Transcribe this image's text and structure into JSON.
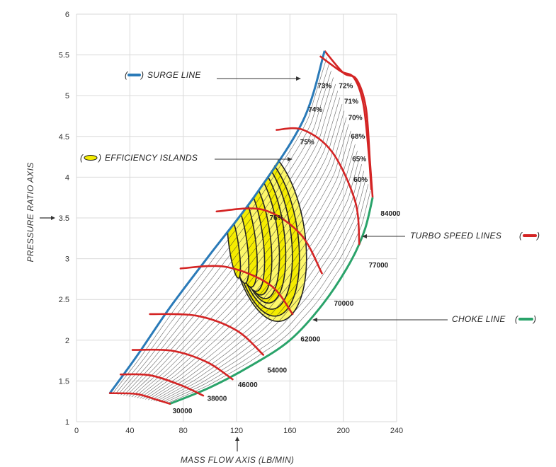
{
  "colors": {
    "surge": "#2a7ab8",
    "choke": "#2aa36a",
    "speed": "#d42424",
    "island_fill": "#fdf76a",
    "island_core": "#f5ec00",
    "island_edge": "#222222",
    "grid": "#d9d9d9"
  },
  "chart_data": {
    "type": "line",
    "title": "",
    "xlabel": "MASS FLOW AXIS (LB/MIN)",
    "ylabel": "PRESSURE RATIO AXIS",
    "xlim": [
      0,
      240
    ],
    "ylim": [
      1,
      6
    ],
    "xticks": [
      0,
      40,
      80,
      120,
      160,
      200,
      240
    ],
    "yticks": [
      1,
      1.5,
      2,
      2.5,
      3,
      3.5,
      4,
      4.5,
      5,
      5.5,
      6
    ],
    "xtick_labels": [
      "0",
      "40",
      "80",
      "120",
      "160",
      "200",
      "240"
    ],
    "ytick_labels": [
      "1",
      "1.5",
      "2",
      "2.5",
      "3",
      "3.5",
      "4",
      "4.5",
      "5",
      "5.5",
      "6"
    ],
    "grid": true,
    "surge_line": {
      "name": "SURGE LINE",
      "points": [
        [
          25,
          1.35
        ],
        [
          45,
          1.8
        ],
        [
          70,
          2.4
        ],
        [
          100,
          3.05
        ],
        [
          135,
          3.8
        ],
        [
          170,
          4.7
        ],
        [
          186,
          5.55
        ]
      ]
    },
    "choke_line": {
      "name": "CHOKE LINE",
      "points": [
        [
          70,
          1.22
        ],
        [
          100,
          1.42
        ],
        [
          130,
          1.68
        ],
        [
          160,
          2.0
        ],
        [
          185,
          2.45
        ],
        [
          205,
          2.95
        ],
        [
          216,
          3.35
        ],
        [
          222,
          3.75
        ]
      ]
    },
    "surge_to_choke_top": [
      [
        186,
        5.55
      ],
      [
        200,
        5.28
      ],
      [
        210,
        5.2
      ],
      [
        217,
        4.85
      ],
      [
        220,
        4.2
      ],
      [
        222,
        3.75
      ]
    ],
    "speed_lines": [
      {
        "label": "30000",
        "points": [
          [
            25,
            1.35
          ],
          [
            45,
            1.34
          ],
          [
            60,
            1.27
          ],
          [
            70,
            1.22
          ]
        ]
      },
      {
        "label": "38000",
        "points": [
          [
            33,
            1.58
          ],
          [
            55,
            1.57
          ],
          [
            78,
            1.45
          ],
          [
            95,
            1.32
          ]
        ]
      },
      {
        "label": "46000",
        "points": [
          [
            42,
            1.88
          ],
          [
            72,
            1.87
          ],
          [
            98,
            1.73
          ],
          [
            117,
            1.52
          ]
        ]
      },
      {
        "label": "54000",
        "points": [
          [
            55,
            2.32
          ],
          [
            90,
            2.3
          ],
          [
            120,
            2.12
          ],
          [
            140,
            1.82
          ]
        ]
      },
      {
        "label": "62000",
        "points": [
          [
            78,
            2.88
          ],
          [
            112,
            2.9
          ],
          [
            145,
            2.68
          ],
          [
            162,
            2.32
          ]
        ]
      },
      {
        "label": "70000",
        "points": [
          [
            105,
            3.58
          ],
          [
            140,
            3.6
          ],
          [
            168,
            3.3
          ],
          [
            184,
            2.82
          ]
        ]
      },
      {
        "label": "77000",
        "points": [
          [
            150,
            4.58
          ],
          [
            170,
            4.58
          ],
          [
            192,
            4.3
          ],
          [
            209,
            3.7
          ],
          [
            212,
            3.18
          ]
        ]
      },
      {
        "label": "84000",
        "points": [
          [
            183,
            5.48
          ],
          [
            198,
            5.3
          ],
          [
            208,
            5.22
          ],
          [
            215,
            4.9
          ],
          [
            219,
            4.3
          ],
          [
            221,
            3.85
          ]
        ]
      }
    ],
    "efficiency_islands": [
      {
        "label": "60%",
        "center": [
          143,
          3.3
        ],
        "rx": 66,
        "ry": 1.02,
        "rot": 0.27
      },
      {
        "label": "65%",
        "center": [
          141,
          3.3
        ],
        "rx": 62,
        "ry": 0.9,
        "rot": 0.26
      },
      {
        "label": "68%",
        "center": [
          139,
          3.32
        ],
        "rx": 58,
        "ry": 0.78,
        "rot": 0.26
      },
      {
        "label": "70%",
        "center": [
          137,
          3.33
        ],
        "rx": 54,
        "ry": 0.67,
        "rot": 0.25
      },
      {
        "label": "71%",
        "center": [
          135,
          3.32
        ],
        "rx": 50,
        "ry": 0.57,
        "rot": 0.25
      },
      {
        "label": "72%",
        "center": [
          132,
          3.3
        ],
        "rx": 46,
        "ry": 0.47,
        "rot": 0.25
      },
      {
        "label": "73%",
        "center": [
          129,
          3.28
        ],
        "rx": 42,
        "ry": 0.38,
        "rot": 0.25
      },
      {
        "label": "74%",
        "center": [
          126,
          3.25
        ],
        "rx": 37,
        "ry": 0.29,
        "rot": 0.24
      },
      {
        "label": "75%",
        "center": [
          122,
          3.2
        ],
        "rx": 31,
        "ry": 0.21,
        "rot": 0.24
      },
      {
        "label": "76%",
        "center": [
          118,
          3.15
        ],
        "rx": 24,
        "ry": 0.13,
        "rot": 0.24
      }
    ],
    "efficiency_label_positions": [
      {
        "label": "73%",
        "x": 186,
        "y": 5.12
      },
      {
        "label": "72%",
        "x": 202,
        "y": 5.12
      },
      {
        "label": "71%",
        "x": 206,
        "y": 4.93
      },
      {
        "label": "70%",
        "x": 209,
        "y": 4.73
      },
      {
        "label": "74%",
        "x": 179,
        "y": 4.83
      },
      {
        "label": "68%",
        "x": 211,
        "y": 4.5
      },
      {
        "label": "75%",
        "x": 173,
        "y": 4.43
      },
      {
        "label": "65%",
        "x": 212,
        "y": 4.22
      },
      {
        "label": "60%",
        "x": 213,
        "y": 3.97
      },
      {
        "label": "76%",
        "x": 150,
        "y": 3.5
      }
    ],
    "speed_label_positions": [
      {
        "label": "84000",
        "x": 228,
        "y": 3.55
      },
      {
        "label": "77000",
        "x": 219,
        "y": 2.92
      },
      {
        "label": "70000",
        "x": 193,
        "y": 2.45
      },
      {
        "label": "62000",
        "x": 168,
        "y": 2.01
      },
      {
        "label": "54000",
        "x": 143,
        "y": 1.63
      },
      {
        "label": "46000",
        "x": 121,
        "y": 1.45
      },
      {
        "label": "38000",
        "x": 98,
        "y": 1.28
      },
      {
        "label": "30000",
        "x": 72,
        "y": 1.13
      }
    ]
  },
  "callouts": {
    "surge": {
      "label": "SURGE LINE",
      "paren_open": "(",
      "paren_close": ")"
    },
    "efficiency": {
      "label": "EFFICIENCY ISLANDS",
      "paren_open": "(",
      "paren_close": ")"
    },
    "turbo_speed": {
      "label": "TURBO SPEED LINES",
      "paren_open": "(",
      "paren_close": ")"
    },
    "choke": {
      "label": "CHOKE LINE",
      "paren_open": "(",
      "paren_close": ")"
    }
  }
}
